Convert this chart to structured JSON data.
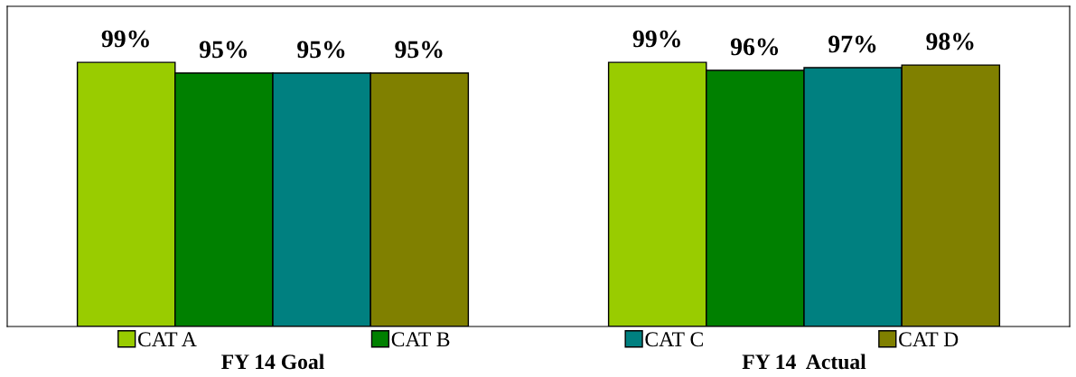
{
  "chart_data": {
    "type": "bar",
    "categories": [
      "FY 14 Goal",
      "FY 14  Actual"
    ],
    "ylim": [
      0,
      120
    ],
    "tick_labels": "x",
    "legend": "bottom",
    "grid": false,
    "series": [
      {
        "name": "CAT A",
        "color": "#99cc00",
        "values": [
          99,
          99
        ],
        "value_labels": [
          "99%",
          "99%"
        ]
      },
      {
        "name": "CAT B",
        "color": "#008000",
        "values": [
          95,
          96
        ],
        "value_labels": [
          "95%",
          "96%"
        ]
      },
      {
        "name": "CAT C",
        "color": "#008080",
        "values": [
          95,
          97
        ],
        "value_labels": [
          "95%",
          "97%"
        ]
      },
      {
        "name": "CAT D",
        "color": "#808000",
        "values": [
          95,
          98
        ],
        "value_labels": [
          "95%",
          "98%"
        ]
      }
    ]
  }
}
